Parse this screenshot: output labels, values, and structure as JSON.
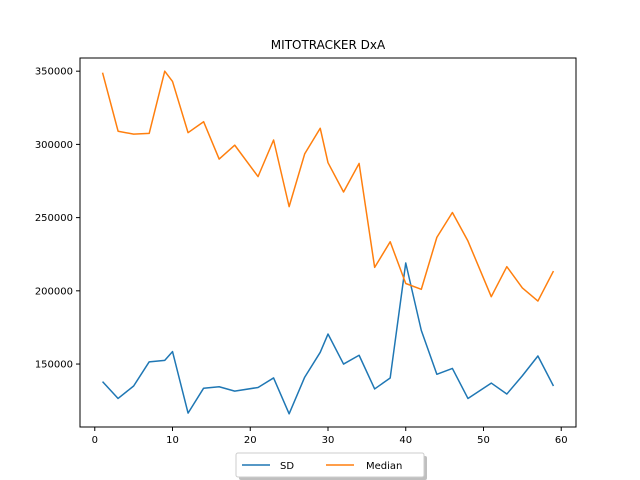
{
  "chart_data": {
    "type": "line",
    "title": "MITOTRACKER DxA",
    "xlabel": "",
    "ylabel": "",
    "xlim": [
      -1.9,
      61.9
    ],
    "ylim": [
      107000,
      359000
    ],
    "xticks": [
      0,
      10,
      20,
      30,
      40,
      50,
      60
    ],
    "yticks": [
      150000,
      200000,
      250000,
      300000,
      350000
    ],
    "grid": false,
    "legend_position": "bottom-center",
    "x": [
      1,
      3,
      5,
      7,
      9,
      10,
      12,
      14,
      16,
      18,
      21,
      23,
      25,
      27,
      29,
      30,
      32,
      34,
      36,
      38,
      40,
      42,
      44,
      46,
      48,
      51,
      53,
      55,
      57,
      59
    ],
    "series": [
      {
        "name": "SD",
        "color": "#1f77b4",
        "values": [
          138000,
          126500,
          135000,
          151500,
          152500,
          158500,
          116500,
          133500,
          134500,
          131500,
          134000,
          140500,
          116000,
          141000,
          158000,
          170500,
          150000,
          156000,
          133000,
          140500,
          219000,
          173000,
          143000,
          147000,
          126500,
          137000,
          129500,
          142000,
          155500,
          135000
        ]
      },
      {
        "name": "Median",
        "color": "#ff7f0e",
        "values": [
          349000,
          309000,
          307000,
          307500,
          350000,
          343000,
          308000,
          315500,
          290000,
          299500,
          278000,
          303000,
          257500,
          293500,
          311000,
          287500,
          267500,
          287000,
          216000,
          233500,
          205000,
          201000,
          236500,
          253500,
          234000,
          196000,
          216500,
          202000,
          193000,
          213500
        ]
      }
    ]
  }
}
